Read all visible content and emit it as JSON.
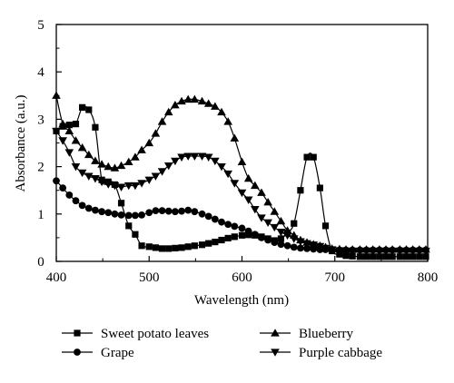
{
  "chart_data": {
    "type": "line",
    "xlabel": "Wavelength (nm)",
    "ylabel": "Absorbance (a.u.)",
    "xlim": [
      400,
      800
    ],
    "ylim": [
      0,
      5
    ],
    "xticks": [
      400,
      500,
      600,
      700,
      800
    ],
    "yticks": [
      0,
      1,
      2,
      3,
      4,
      5
    ],
    "xtick_labels": [
      "400",
      "500",
      "600",
      "700",
      "800"
    ],
    "ytick_labels": [
      "0",
      "1",
      "2",
      "3",
      "4",
      "5"
    ],
    "grid": false,
    "legend": {
      "position": "bottom",
      "columns": 2
    },
    "series": [
      {
        "name": "Sweet potato leaves",
        "marker": "square",
        "points": [
          [
            400,
            2.75
          ],
          [
            407,
            2.85
          ],
          [
            414,
            2.88
          ],
          [
            421,
            2.9
          ],
          [
            428,
            3.25
          ],
          [
            435,
            3.2
          ],
          [
            442,
            2.83
          ],
          [
            449,
            1.72
          ],
          [
            456,
            1.68
          ],
          [
            463,
            1.62
          ],
          [
            470,
            1.23
          ],
          [
            478,
            0.75
          ],
          [
            485,
            0.57
          ],
          [
            492,
            0.33
          ],
          [
            500,
            0.31
          ],
          [
            507,
            0.29
          ],
          [
            514,
            0.27
          ],
          [
            521,
            0.27
          ],
          [
            528,
            0.28
          ],
          [
            535,
            0.29
          ],
          [
            542,
            0.31
          ],
          [
            549,
            0.33
          ],
          [
            557,
            0.35
          ],
          [
            564,
            0.38
          ],
          [
            571,
            0.41
          ],
          [
            578,
            0.45
          ],
          [
            585,
            0.49
          ],
          [
            592,
            0.52
          ],
          [
            600,
            0.55
          ],
          [
            607,
            0.56
          ],
          [
            614,
            0.55
          ],
          [
            621,
            0.52
          ],
          [
            628,
            0.48
          ],
          [
            635,
            0.44
          ],
          [
            642,
            0.48
          ],
          [
            649,
            0.6
          ],
          [
            656,
            0.8
          ],
          [
            663,
            1.5
          ],
          [
            670,
            2.2
          ],
          [
            677,
            2.2
          ],
          [
            684,
            1.55
          ],
          [
            690,
            0.75
          ],
          [
            697,
            0.22
          ],
          [
            705,
            0.15
          ],
          [
            712,
            0.12
          ],
          [
            719,
            0.11
          ],
          [
            727,
            0.1
          ],
          [
            734,
            0.1
          ],
          [
            741,
            0.1
          ],
          [
            748,
            0.1
          ],
          [
            755,
            0.1
          ],
          [
            762,
            0.1
          ],
          [
            770,
            0.1
          ],
          [
            777,
            0.1
          ],
          [
            784,
            0.1
          ],
          [
            791,
            0.1
          ],
          [
            798,
            0.1
          ]
        ]
      },
      {
        "name": "Blueberry",
        "marker": "triangle-up",
        "points": [
          [
            400,
            3.5
          ],
          [
            407,
            2.9
          ],
          [
            414,
            2.75
          ],
          [
            421,
            2.55
          ],
          [
            428,
            2.4
          ],
          [
            435,
            2.25
          ],
          [
            442,
            2.12
          ],
          [
            449,
            2.05
          ],
          [
            456,
            2.0
          ],
          [
            463,
            1.97
          ],
          [
            470,
            2.02
          ],
          [
            478,
            2.1
          ],
          [
            485,
            2.2
          ],
          [
            492,
            2.35
          ],
          [
            500,
            2.5
          ],
          [
            507,
            2.7
          ],
          [
            514,
            2.95
          ],
          [
            521,
            3.15
          ],
          [
            528,
            3.3
          ],
          [
            535,
            3.38
          ],
          [
            542,
            3.42
          ],
          [
            549,
            3.42
          ],
          [
            557,
            3.38
          ],
          [
            564,
            3.33
          ],
          [
            571,
            3.27
          ],
          [
            578,
            3.15
          ],
          [
            585,
            2.95
          ],
          [
            592,
            2.6
          ],
          [
            600,
            2.1
          ],
          [
            607,
            1.75
          ],
          [
            614,
            1.6
          ],
          [
            621,
            1.45
          ],
          [
            628,
            1.25
          ],
          [
            635,
            1.05
          ],
          [
            642,
            0.85
          ],
          [
            649,
            0.65
          ],
          [
            656,
            0.55
          ],
          [
            663,
            0.45
          ],
          [
            670,
            0.4
          ],
          [
            677,
            0.36
          ],
          [
            684,
            0.33
          ],
          [
            690,
            0.3
          ],
          [
            697,
            0.27
          ],
          [
            705,
            0.26
          ],
          [
            712,
            0.25
          ],
          [
            719,
            0.25
          ],
          [
            727,
            0.25
          ],
          [
            734,
            0.25
          ],
          [
            741,
            0.25
          ],
          [
            748,
            0.25
          ],
          [
            755,
            0.25
          ],
          [
            762,
            0.25
          ],
          [
            770,
            0.25
          ],
          [
            777,
            0.25
          ],
          [
            784,
            0.25
          ],
          [
            791,
            0.25
          ],
          [
            798,
            0.25
          ]
        ]
      },
      {
        "name": "Grape",
        "marker": "circle",
        "points": [
          [
            400,
            1.7
          ],
          [
            407,
            1.55
          ],
          [
            414,
            1.4
          ],
          [
            421,
            1.28
          ],
          [
            428,
            1.18
          ],
          [
            435,
            1.12
          ],
          [
            442,
            1.08
          ],
          [
            449,
            1.05
          ],
          [
            456,
            1.03
          ],
          [
            463,
            1.0
          ],
          [
            470,
            0.98
          ],
          [
            478,
            0.97
          ],
          [
            485,
            0.97
          ],
          [
            492,
            0.98
          ],
          [
            500,
            1.03
          ],
          [
            507,
            1.07
          ],
          [
            514,
            1.07
          ],
          [
            521,
            1.06
          ],
          [
            528,
            1.05
          ],
          [
            535,
            1.06
          ],
          [
            542,
            1.08
          ],
          [
            549,
            1.05
          ],
          [
            557,
            1.0
          ],
          [
            564,
            0.95
          ],
          [
            571,
            0.89
          ],
          [
            578,
            0.83
          ],
          [
            585,
            0.78
          ],
          [
            592,
            0.74
          ],
          [
            600,
            0.7
          ],
          [
            607,
            0.64
          ],
          [
            614,
            0.57
          ],
          [
            621,
            0.5
          ],
          [
            628,
            0.45
          ],
          [
            635,
            0.4
          ],
          [
            642,
            0.36
          ],
          [
            649,
            0.33
          ],
          [
            656,
            0.3
          ],
          [
            663,
            0.28
          ],
          [
            670,
            0.27
          ],
          [
            677,
            0.26
          ],
          [
            684,
            0.25
          ],
          [
            690,
            0.25
          ],
          [
            697,
            0.24
          ],
          [
            705,
            0.24
          ],
          [
            712,
            0.24
          ],
          [
            719,
            0.24
          ],
          [
            727,
            0.24
          ],
          [
            734,
            0.24
          ],
          [
            741,
            0.24
          ],
          [
            748,
            0.24
          ],
          [
            755,
            0.24
          ],
          [
            762,
            0.24
          ],
          [
            770,
            0.24
          ],
          [
            777,
            0.24
          ],
          [
            784,
            0.24
          ],
          [
            791,
            0.24
          ],
          [
            798,
            0.24
          ]
        ]
      },
      {
        "name": "Purple cabbage",
        "marker": "triangle-down",
        "points": [
          [
            400,
            2.75
          ],
          [
            407,
            2.55
          ],
          [
            414,
            2.3
          ],
          [
            421,
            2.0
          ],
          [
            428,
            1.87
          ],
          [
            435,
            1.8
          ],
          [
            442,
            1.75
          ],
          [
            449,
            1.68
          ],
          [
            456,
            1.63
          ],
          [
            463,
            1.6
          ],
          [
            470,
            1.57
          ],
          [
            478,
            1.6
          ],
          [
            485,
            1.6
          ],
          [
            492,
            1.65
          ],
          [
            500,
            1.72
          ],
          [
            507,
            1.8
          ],
          [
            514,
            1.9
          ],
          [
            521,
            2.02
          ],
          [
            528,
            2.12
          ],
          [
            535,
            2.2
          ],
          [
            542,
            2.22
          ],
          [
            549,
            2.22
          ],
          [
            557,
            2.22
          ],
          [
            564,
            2.2
          ],
          [
            571,
            2.12
          ],
          [
            578,
            2.0
          ],
          [
            585,
            1.85
          ],
          [
            592,
            1.65
          ],
          [
            600,
            1.45
          ],
          [
            607,
            1.3
          ],
          [
            614,
            1.1
          ],
          [
            621,
            0.92
          ],
          [
            628,
            0.82
          ],
          [
            635,
            0.72
          ],
          [
            642,
            0.62
          ],
          [
            649,
            0.55
          ],
          [
            656,
            0.48
          ],
          [
            663,
            0.42
          ],
          [
            670,
            0.38
          ],
          [
            677,
            0.35
          ],
          [
            684,
            0.32
          ],
          [
            690,
            0.28
          ],
          [
            697,
            0.25
          ],
          [
            705,
            0.23
          ],
          [
            712,
            0.22
          ],
          [
            719,
            0.22
          ],
          [
            727,
            0.22
          ],
          [
            734,
            0.22
          ],
          [
            741,
            0.22
          ],
          [
            748,
            0.22
          ],
          [
            755,
            0.22
          ],
          [
            762,
            0.22
          ],
          [
            770,
            0.22
          ],
          [
            777,
            0.22
          ],
          [
            784,
            0.22
          ],
          [
            791,
            0.22
          ],
          [
            798,
            0.22
          ]
        ]
      }
    ]
  }
}
